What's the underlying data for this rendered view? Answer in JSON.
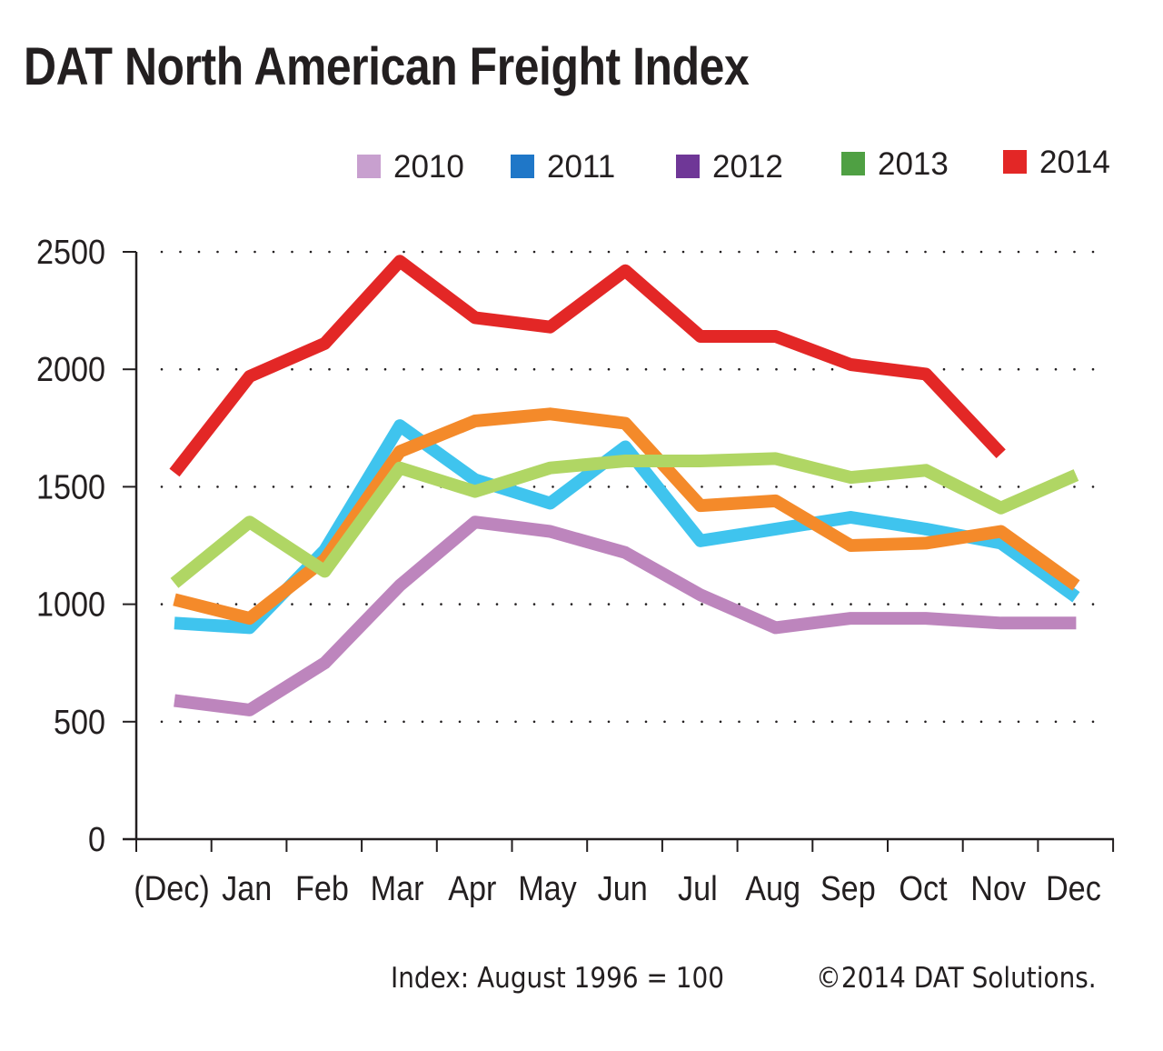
{
  "chart_data": {
    "type": "line",
    "title": "DAT North American Freight Index",
    "categories": [
      "(Dec)",
      "Jan",
      "Feb",
      "Mar",
      "Apr",
      "May",
      "Jun",
      "Jul",
      "Aug",
      "Sep",
      "Oct",
      "Nov",
      "Dec"
    ],
    "ylim": [
      0,
      2500
    ],
    "yticks": [
      0,
      500,
      1000,
      1500,
      2000,
      2500
    ],
    "grid": "dotted-horizontal",
    "legend_position": "top-right",
    "series": [
      {
        "name": "2010",
        "legend_color": "#c8a0cf",
        "line_color": "#bd85bd",
        "values": [
          590,
          550,
          750,
          1080,
          1350,
          1310,
          1220,
          1040,
          900,
          940,
          940,
          920,
          920
        ]
      },
      {
        "name": "2011",
        "legend_color": "#1f77c8",
        "line_color": "#3fc4ee",
        "values": [
          920,
          900,
          1230,
          1760,
          1530,
          1430,
          1670,
          1270,
          1320,
          1370,
          1320,
          1260,
          1030
        ]
      },
      {
        "name": "2012",
        "legend_color": "#6f3797",
        "line_color": "#f48a2a",
        "values": [
          1020,
          940,
          1190,
          1650,
          1780,
          1810,
          1770,
          1420,
          1440,
          1250,
          1260,
          1310,
          1080
        ]
      },
      {
        "name": "2013",
        "legend_color": "#4fa043",
        "line_color": "#b0d664",
        "values": [
          1090,
          1350,
          1140,
          1580,
          1480,
          1580,
          1610,
          1610,
          1620,
          1540,
          1570,
          1410,
          1550
        ]
      },
      {
        "name": "2014",
        "legend_color": "#e32726",
        "line_color": "#e32726",
        "values": [
          1560,
          1970,
          2110,
          2460,
          2220,
          2180,
          2420,
          2140,
          2140,
          2020,
          1980,
          1640,
          null
        ]
      }
    ]
  },
  "footer": {
    "index_note": "Index: August  1996 = 100",
    "copyright": "©2014 DAT Solutions."
  }
}
